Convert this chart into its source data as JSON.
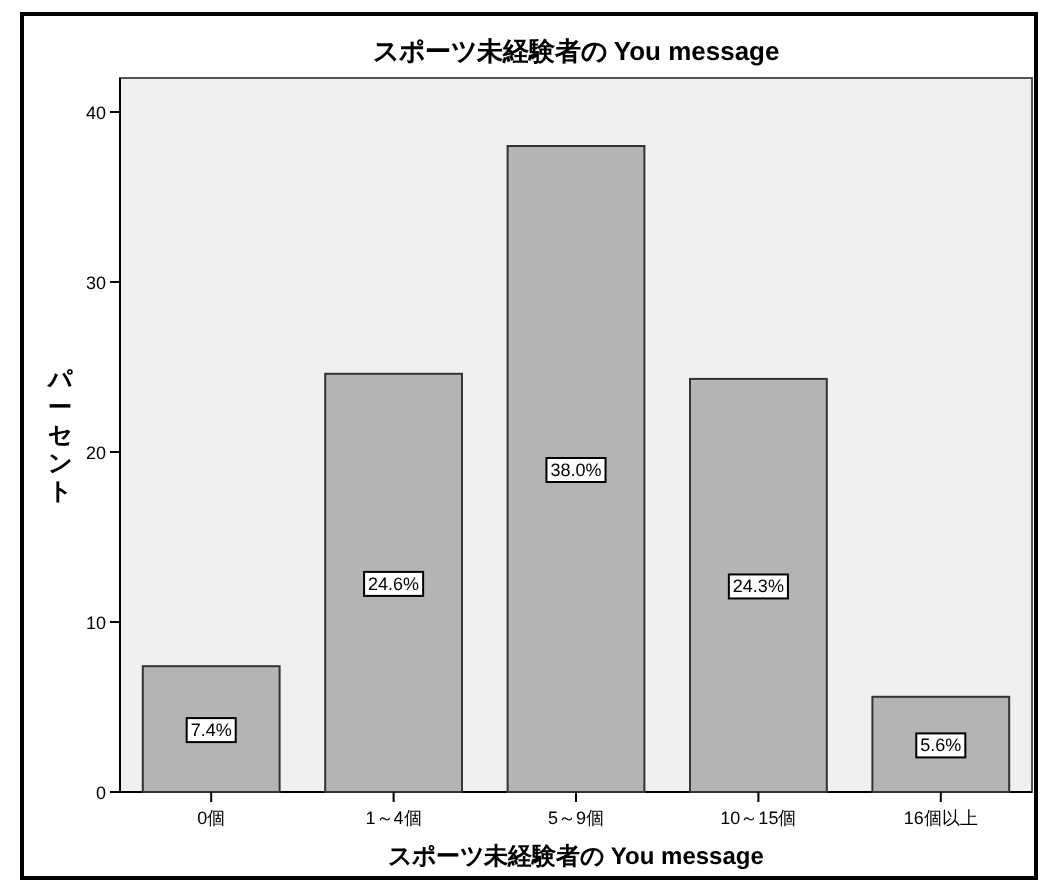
{
  "chart_data": {
    "type": "bar",
    "title": "スポーツ未経験者の You message",
    "xlabel": "スポーツ未経験者の You message",
    "ylabel": "パーセント",
    "categories": [
      "0個",
      "1～4個",
      "5～9個",
      "10～15個",
      "16個以上"
    ],
    "values": [
      7.4,
      24.6,
      38.0,
      24.3,
      5.6
    ],
    "value_labels": [
      "7.4%",
      "24.6%",
      "38.0%",
      "24.3%",
      "5.6%"
    ],
    "color": "#b4b4b4",
    "ylim": [
      0,
      42
    ],
    "yticks": [
      0,
      10,
      20,
      30,
      40
    ],
    "grid": false
  }
}
